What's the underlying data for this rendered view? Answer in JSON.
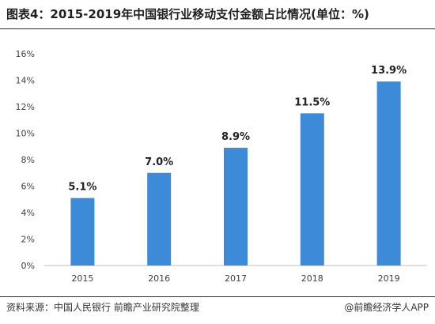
{
  "header": {
    "title": "图表4：2015-2019年中国银行业移动支付金额占比情况(单位：%)"
  },
  "footer": {
    "source": "资料来源：中国人民银行 前瞻产业研究院整理",
    "brand": "@前瞻经济学人APP"
  },
  "chart_data": {
    "type": "bar",
    "title": "",
    "xlabel": "",
    "ylabel": "",
    "categories": [
      "2015",
      "2016",
      "2017",
      "2018",
      "2019"
    ],
    "values": [
      5.1,
      7.0,
      8.9,
      11.5,
      13.9
    ],
    "data_labels": [
      "5.1%",
      "7.0%",
      "8.9%",
      "11.5%",
      "13.9%"
    ],
    "ylim": [
      0,
      16
    ],
    "yticks": [
      0,
      2,
      4,
      6,
      8,
      10,
      12,
      14,
      16
    ],
    "ytick_labels": [
      "0%",
      "2%",
      "4%",
      "6%",
      "8%",
      "10%",
      "12%",
      "14%",
      "16%"
    ],
    "grid": false,
    "legend": "none",
    "bar_color": "#3d8ad8"
  }
}
